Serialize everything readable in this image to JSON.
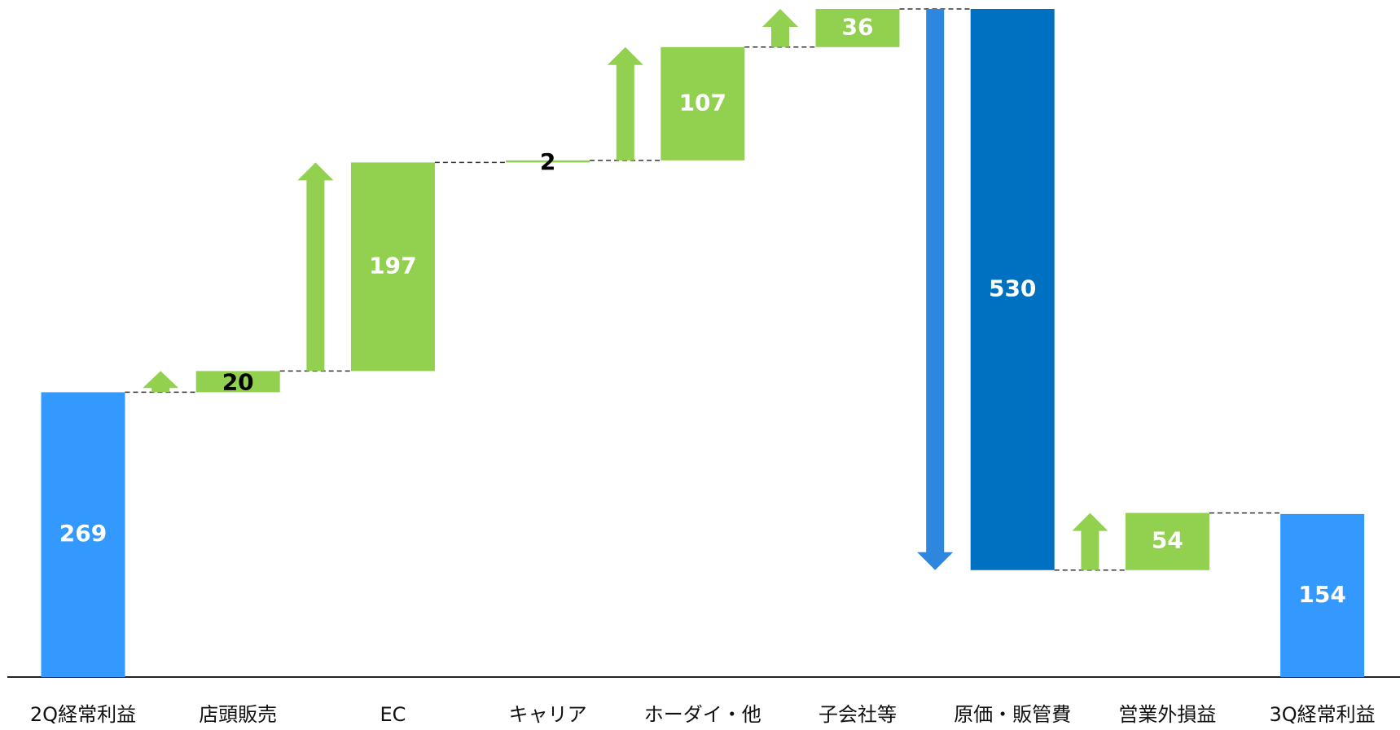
{
  "chart_data": {
    "type": "waterfall",
    "categories": [
      "2Q経常利益",
      "店頭販売",
      "EC",
      "キャリア",
      "ホーダイ・他",
      "子会社等",
      "原価・販管費",
      "営業外損益",
      "3Q経常利益"
    ],
    "values": [
      269,
      20,
      197,
      2,
      107,
      36,
      -530,
      54,
      154
    ],
    "value_labels": [
      "269",
      "20",
      "197",
      "2",
      "107",
      "36",
      "530",
      "54",
      "154"
    ],
    "measure": [
      "total",
      "relative",
      "relative",
      "relative",
      "relative",
      "relative",
      "relative",
      "relative",
      "total"
    ],
    "colors": {
      "total": "#3399ff",
      "increase": "#92d050",
      "decrease": "#0070c0",
      "increase_arrow": "#92d050",
      "decrease_arrow": "#2e86de"
    }
  }
}
